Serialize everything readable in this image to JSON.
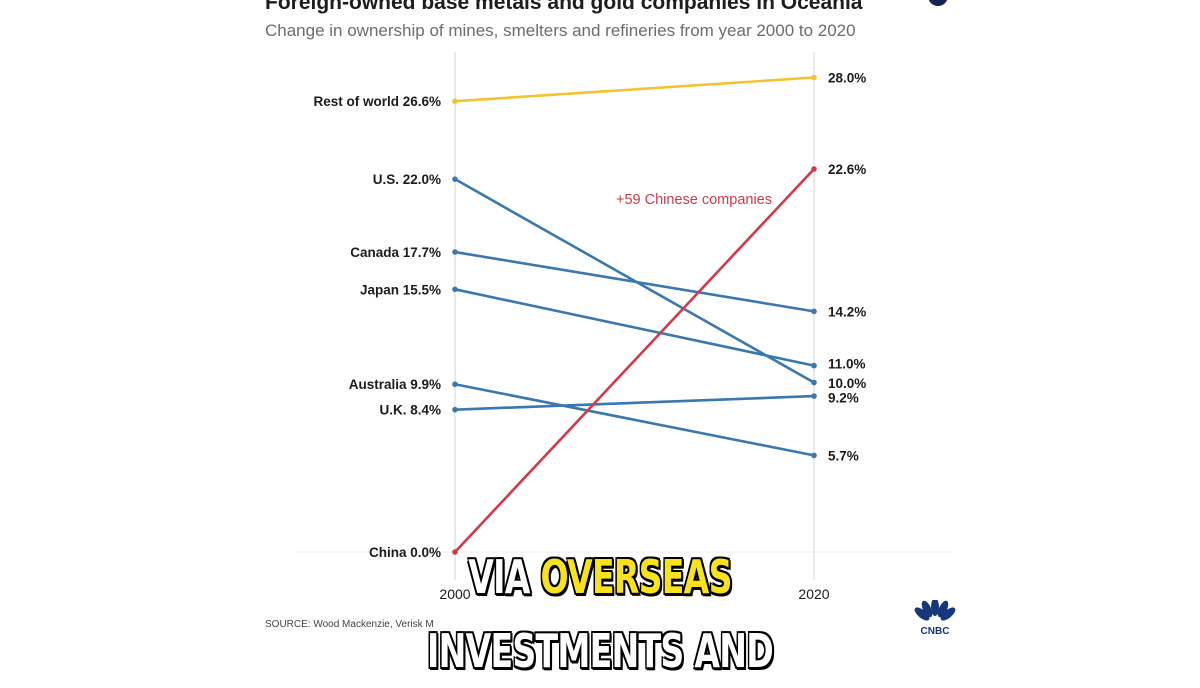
{
  "header": {
    "title": "Foreign-owned base metals and gold companies in Oceania",
    "subtitle": "Change in ownership of mines, smelters and refineries from year 2000 to 2020"
  },
  "chart_data": {
    "type": "line",
    "x": [
      "2000",
      "2020"
    ],
    "ylim": [
      0,
      28
    ],
    "series": [
      {
        "name": "Rest of world",
        "values": [
          26.6,
          28.0
        ],
        "color": "#f2c431",
        "label_start": "Rest of world 26.6%",
        "label_end": "28.0%"
      },
      {
        "name": "U.S.",
        "values": [
          22.0,
          10.0
        ],
        "color": "#3a78ad",
        "label_start": "U.S. 22.0%",
        "label_end": "10.0%"
      },
      {
        "name": "Canada",
        "values": [
          17.7,
          14.2
        ],
        "color": "#3a78ad",
        "label_start": "Canada 17.7%",
        "label_end": "14.2%"
      },
      {
        "name": "Japan",
        "values": [
          15.5,
          11.0
        ],
        "color": "#3a78ad",
        "label_start": "Japan 15.5%",
        "label_end": "11.0%"
      },
      {
        "name": "Australia",
        "values": [
          9.9,
          5.7
        ],
        "color": "#3a78ad",
        "label_start": "Australia 9.9%",
        "label_end": "5.7%"
      },
      {
        "name": "U.K.",
        "values": [
          8.4,
          9.2
        ],
        "color": "#3a78ad",
        "label_start": "U.K. 8.4%",
        "label_end": "9.2%"
      },
      {
        "name": "China",
        "values": [
          0.0,
          22.6
        ],
        "color": "#d13a4a",
        "label_start": "China 0.0%",
        "label_end": "22.6%"
      }
    ],
    "annotation": {
      "text": "+59 Chinese companies",
      "color": "#d13a4a"
    },
    "grid": false
  },
  "source": "SOURCE: Wood Mackenzie, Verisk M",
  "logo": {
    "text": "CNBC",
    "icon": "peacock-icon"
  },
  "caption": {
    "line1_white": "VIA",
    "line1_highlight": "OVERSEAS",
    "line2": "INVESTMENTS AND"
  },
  "colors": {
    "accent_yellow": "#f2c431",
    "accent_red": "#d13a4a",
    "blue": "#3a78ad",
    "caption_highlight": "#f7e21b"
  }
}
